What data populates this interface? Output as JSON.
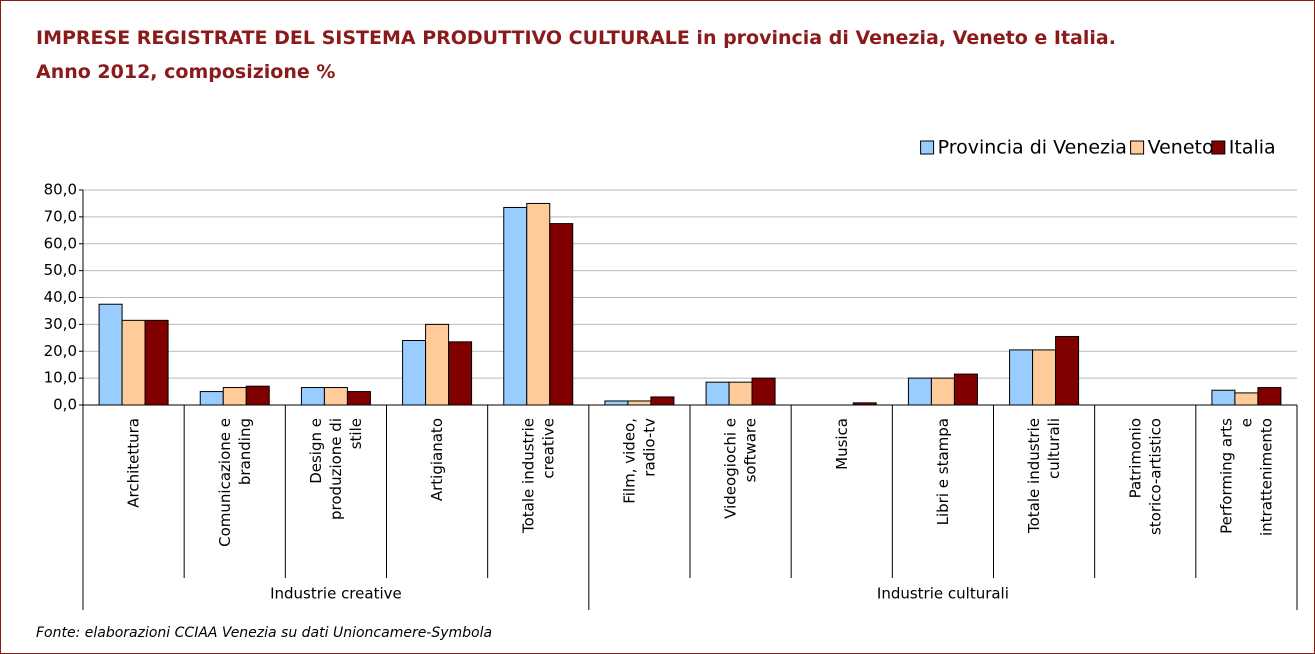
{
  "chart_data": {
    "type": "bar",
    "title": "IMPRESE REGISTRATE DEL SISTEMA PRODUTTIVO CULTURALE in provincia di Venezia, Veneto e Italia.",
    "subtitle": "Anno 2012, composizione %",
    "source": "Fonte: elaborazioni CCIAA Venezia su dati Unioncamere-Symbola",
    "groups": [
      {
        "name": "Industrie creative",
        "categories": [
          "Architettura",
          "Comunicazione e branding",
          "Design e produzione di stile",
          "Artigianato",
          "Totale industrie creative"
        ]
      },
      {
        "name": "Industrie culturali",
        "categories": [
          "Film, video, radio-tv",
          "Videogiochi e software",
          "Musica",
          "Libri e stampa",
          "Totale industrie culturali",
          "Patrimonio storico-artistico",
          "Performing arts e intrattenimento"
        ]
      }
    ],
    "series": [
      {
        "name": "Provincia di Venezia",
        "color": "#99ccff",
        "values": [
          37.5,
          5.0,
          6.5,
          24.0,
          73.5,
          1.5,
          8.5,
          0,
          10.0,
          20.5,
          0,
          5.5
        ]
      },
      {
        "name": "Veneto",
        "color": "#ffcc99",
        "values": [
          31.5,
          6.5,
          6.5,
          30.0,
          75.0,
          1.5,
          8.5,
          0,
          10.0,
          20.5,
          0,
          4.5
        ]
      },
      {
        "name": "Italia",
        "color": "#800000",
        "values": [
          31.5,
          7.0,
          5.0,
          23.5,
          67.5,
          3.0,
          10.0,
          0.8,
          11.5,
          25.5,
          0,
          6.5
        ]
      }
    ],
    "ylim": [
      0,
      80
    ],
    "yticks": [
      {
        "value": 0,
        "label": "0,0"
      },
      {
        "value": 10,
        "label": "10,0"
      },
      {
        "value": 20,
        "label": "20,0"
      },
      {
        "value": 30,
        "label": "30,0"
      },
      {
        "value": 40,
        "label": "40,0"
      },
      {
        "value": 50,
        "label": "50,0"
      },
      {
        "value": 60,
        "label": "60,0"
      },
      {
        "value": 70,
        "label": "70,0"
      },
      {
        "value": 80,
        "label": "80,0"
      }
    ],
    "grid": true,
    "legend": "top-right"
  }
}
